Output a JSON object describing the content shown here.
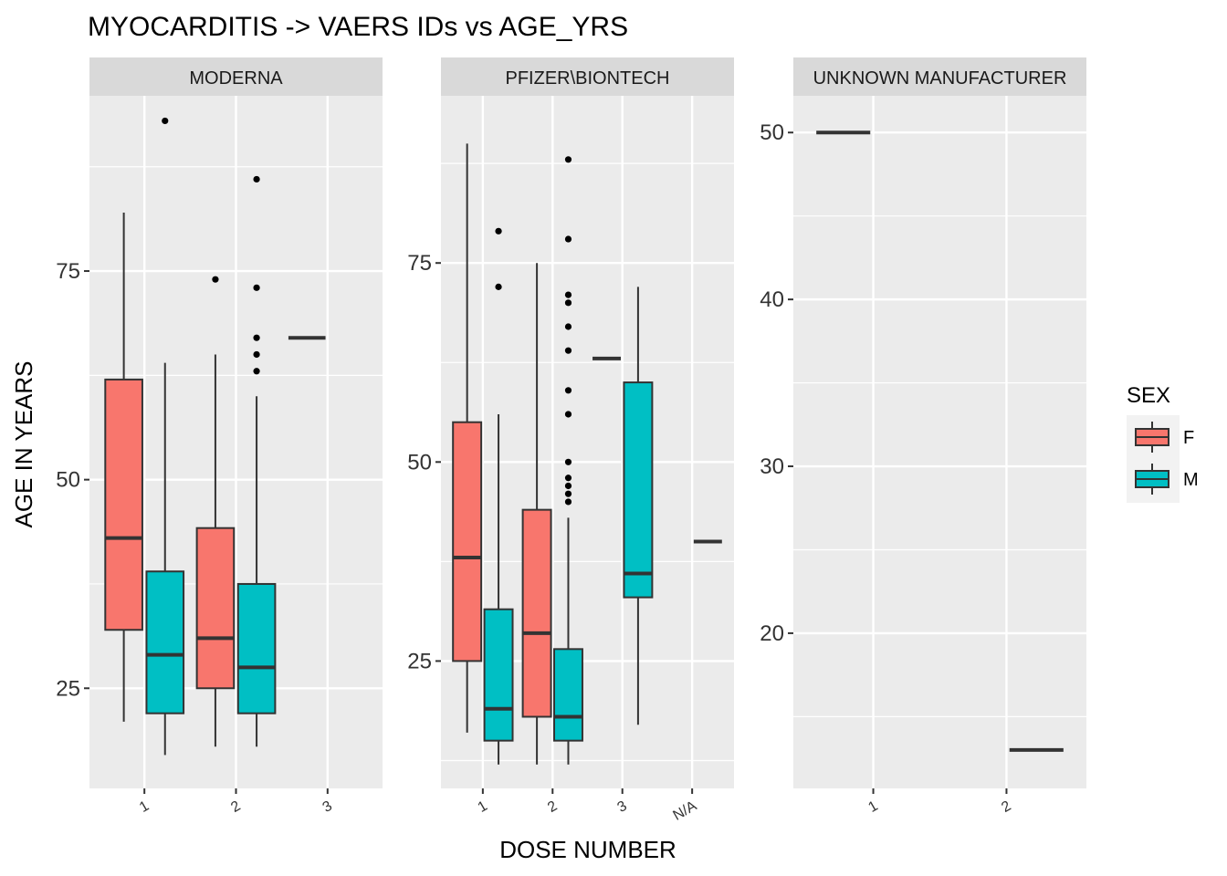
{
  "chart_data": {
    "type": "boxplot",
    "title": "MYOCARDITIS -> VAERS IDs vs AGE_YRS",
    "xlabel": "DOSE NUMBER",
    "ylabel": "AGE IN YEARS",
    "legend": {
      "title": "SEX",
      "placement": "right",
      "entries": [
        {
          "label": "F",
          "color": "#F8766D"
        },
        {
          "label": "M",
          "color": "#00BFC4"
        }
      ]
    },
    "colors": {
      "panel_bg": "#EBEBEB",
      "strip_bg": "#D9D9D9",
      "grid": "#FFFFFF",
      "box_line": "#333333"
    },
    "panels": [
      {
        "name": "MODERNA",
        "ylim": [
          13,
          96
        ],
        "yticks": [
          25,
          50,
          75
        ],
        "categories": [
          "1",
          "2",
          "3"
        ],
        "boxes": [
          {
            "dose": "1",
            "sex": "F",
            "min": 21,
            "q1": 32,
            "median": 43,
            "q3": 62,
            "max": 82,
            "outliers": []
          },
          {
            "dose": "1",
            "sex": "M",
            "min": 17,
            "q1": 22,
            "median": 29,
            "q3": 39,
            "max": 64,
            "outliers": [
              93
            ]
          },
          {
            "dose": "2",
            "sex": "F",
            "min": 18,
            "q1": 25,
            "median": 31,
            "q3": 44.2,
            "max": 65,
            "outliers": [
              74
            ]
          },
          {
            "dose": "2",
            "sex": "M",
            "min": 18,
            "q1": 22,
            "median": 27.5,
            "q3": 37.5,
            "max": 60,
            "outliers": [
              63,
              65,
              67,
              73,
              86
            ]
          },
          {
            "dose": "3",
            "sex": "F",
            "min": 67,
            "q1": 67,
            "median": 67,
            "q3": 67,
            "max": 67,
            "outliers": [],
            "single": true
          }
        ]
      },
      {
        "name": "PFIZER\\BIONTECH",
        "ylim": [
          9,
          96
        ],
        "yticks": [
          25,
          50,
          75
        ],
        "categories": [
          "1",
          "2",
          "3",
          "N/A"
        ],
        "boxes": [
          {
            "dose": "1",
            "sex": "F",
            "min": 16,
            "q1": 25,
            "median": 38,
            "q3": 55,
            "max": 90,
            "outliers": []
          },
          {
            "dose": "1",
            "sex": "M",
            "min": 12,
            "q1": 15,
            "median": 19,
            "q3": 31.5,
            "max": 56,
            "outliers": [
              72,
              79
            ]
          },
          {
            "dose": "2",
            "sex": "F",
            "min": 12,
            "q1": 18,
            "median": 28.5,
            "q3": 44,
            "max": 75,
            "outliers": []
          },
          {
            "dose": "2",
            "sex": "M",
            "min": 12,
            "q1": 15,
            "median": 18,
            "q3": 26.5,
            "max": 43,
            "outliers": [
              45,
              46,
              47,
              48,
              50,
              56,
              59,
              64,
              67,
              70,
              71,
              78,
              88
            ]
          },
          {
            "dose": "3",
            "sex": "F",
            "min": 63,
            "q1": 63,
            "median": 63,
            "q3": 63,
            "max": 63,
            "outliers": [],
            "single": true
          },
          {
            "dose": "3",
            "sex": "M",
            "min": 17,
            "q1": 33,
            "median": 36,
            "q3": 60,
            "max": 72,
            "outliers": []
          },
          {
            "dose": "N/A",
            "sex": "M",
            "min": 40,
            "q1": 40,
            "median": 40,
            "q3": 40,
            "max": 40,
            "outliers": [],
            "single": true
          }
        ]
      },
      {
        "name": "UNKNOWN MANUFACTURER",
        "ylim": [
          10.7,
          52.2
        ],
        "yticks": [
          20,
          30,
          40,
          50
        ],
        "categories": [
          "1",
          "2"
        ],
        "boxes": [
          {
            "dose": "1",
            "sex": "F",
            "min": 50,
            "q1": 50,
            "median": 50,
            "q3": 50,
            "max": 50,
            "outliers": [],
            "single": true
          },
          {
            "dose": "2",
            "sex": "M",
            "min": 13,
            "q1": 13,
            "median": 13,
            "q3": 13,
            "max": 13,
            "outliers": [],
            "single": true
          }
        ]
      }
    ]
  }
}
